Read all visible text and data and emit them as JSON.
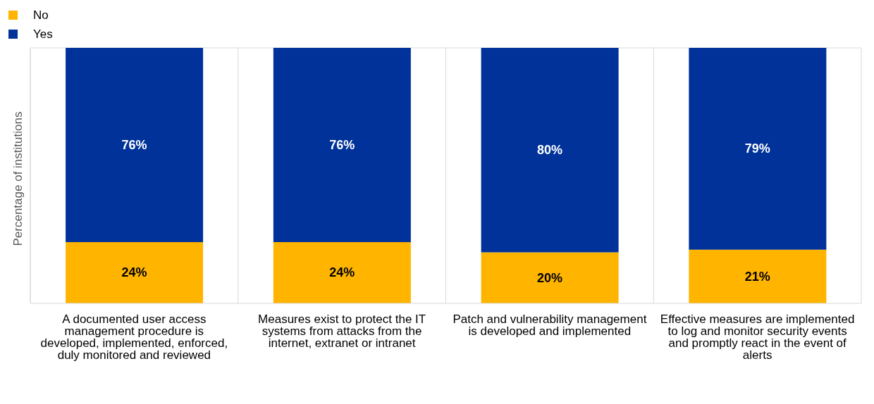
{
  "chart_data": {
    "type": "bar",
    "stacked": true,
    "ylabel": "Percentage of institutions",
    "categories": [
      "A documented user access management procedure is developed, implemented, enforced, duly monitored and reviewed",
      "Measures exist to protect the IT systems from attacks from the internet, extranet or intranet",
      "Patch and vulnerability management is developed and implemented",
      "Effective measures are implemented to log and monitor security events and promptly react in the event of alerts"
    ],
    "series": [
      {
        "name": "No",
        "color": "#ffb400",
        "values": [
          24,
          24,
          20,
          21
        ],
        "value_labels": [
          "24%",
          "24%",
          "20%",
          "21%"
        ]
      },
      {
        "name": "Yes",
        "color": "#003299",
        "values": [
          76,
          76,
          80,
          79
        ],
        "value_labels": [
          "76%",
          "76%",
          "80%",
          "79%"
        ]
      }
    ],
    "legend": "top left",
    "grid": "x",
    "tick_labels": "x"
  }
}
